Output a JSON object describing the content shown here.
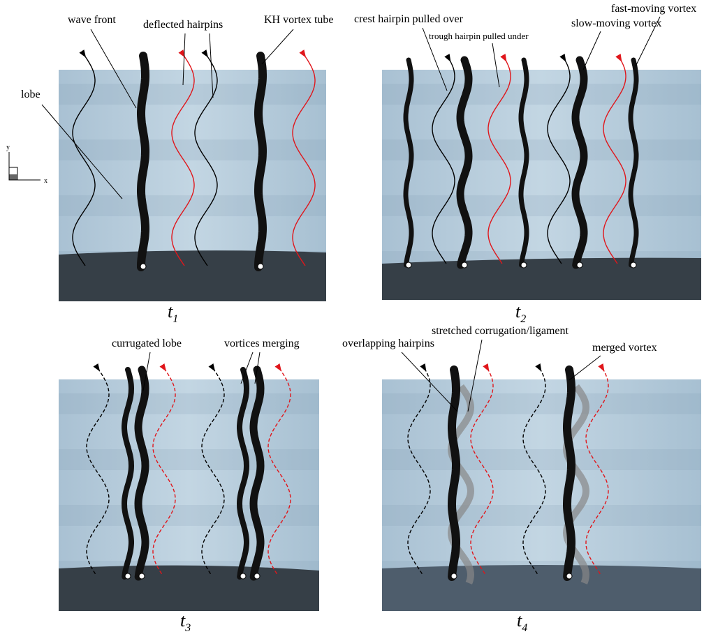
{
  "panels": [
    {
      "caption": {
        "symbol": "t",
        "subscript": "1"
      },
      "annotations": [
        "wave front",
        "deflected hairpins",
        "KH vortex tube",
        "lobe"
      ],
      "axes": {
        "vertical": "y",
        "horizontal": "x"
      }
    },
    {
      "caption": {
        "symbol": "t",
        "subscript": "2"
      },
      "annotations": [
        "crest hairpin pulled over",
        "trough hairpin pulled under",
        "slow-moving vortex",
        "fast-moving vortex"
      ]
    },
    {
      "caption": {
        "symbol": "t",
        "subscript": "3"
      },
      "annotations": [
        "currugated lobe",
        "vortices merging"
      ]
    },
    {
      "caption": {
        "symbol": "t",
        "subscript": "4"
      },
      "annotations": [
        "overlapping hairpins",
        "stretched corrugation/ligament",
        "merged vortex"
      ]
    }
  ]
}
